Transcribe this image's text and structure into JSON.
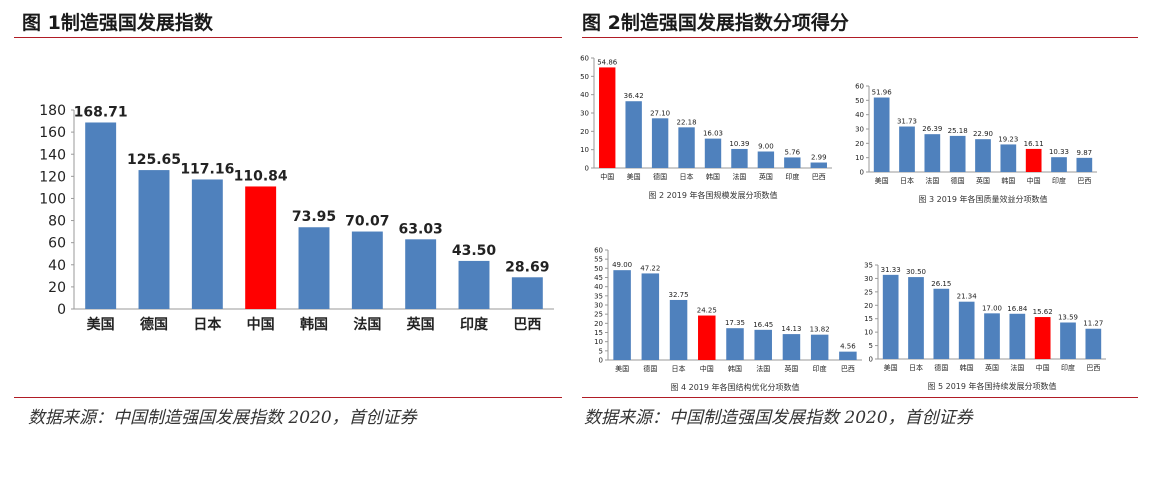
{
  "left": {
    "title": "图 1制造强国发展指数",
    "source": "数据来源：中国制造强国发展指数 2020，首创证券"
  },
  "right": {
    "title": "图 2制造强国发展指数分项得分",
    "source": "数据来源：中国制造强国发展指数 2020，首创证券"
  },
  "colors": {
    "bar": "#4f81bd",
    "highlight": "#ff0000",
    "rule": "#b01c25"
  },
  "chart_data": [
    {
      "type": "bar",
      "title": "",
      "categories": [
        "美国",
        "德国",
        "日本",
        "中国",
        "韩国",
        "法国",
        "英国",
        "印度",
        "巴西"
      ],
      "values": [
        168.71,
        125.65,
        117.16,
        110.84,
        73.95,
        70.07,
        63.03,
        43.5,
        28.69
      ],
      "value_labels": [
        "168.71",
        "125.65",
        "117.16",
        "110.84",
        "73.95",
        "70.07",
        "63.03",
        "43.50",
        "28.69"
      ],
      "highlight": "中国",
      "ylim": [
        0,
        180
      ],
      "yticks": [
        0,
        20,
        40,
        60,
        80,
        100,
        120,
        140,
        160,
        180
      ],
      "grid": false
    },
    {
      "type": "bar",
      "caption": "图 2 2019 年各国规模发展分项数值",
      "categories": [
        "中国",
        "美国",
        "德国",
        "日本",
        "韩国",
        "法国",
        "英国",
        "印度",
        "巴西"
      ],
      "values": [
        54.86,
        36.42,
        27.1,
        22.18,
        16.03,
        10.39,
        9.0,
        5.76,
        2.99
      ],
      "value_labels": [
        "54.86",
        "36.42",
        "27.10",
        "22.18",
        "16.03",
        "10.39",
        "9.00",
        "5.76",
        "2.99"
      ],
      "highlight": "中国",
      "ylim": [
        0,
        60
      ],
      "yticks": [
        0,
        10,
        20,
        30,
        40,
        50,
        60
      ]
    },
    {
      "type": "bar",
      "caption": "图 3 2019 年各国质量效益分项数值",
      "categories": [
        "美国",
        "日本",
        "法国",
        "德国",
        "英国",
        "韩国",
        "中国",
        "印度",
        "巴西"
      ],
      "values": [
        51.96,
        31.73,
        26.39,
        25.18,
        22.9,
        19.23,
        16.11,
        10.33,
        9.87
      ],
      "value_labels": [
        "51.96",
        "31.73",
        "26.39",
        "25.18",
        "22.90",
        "19.23",
        "16.11",
        "10.33",
        "9.87"
      ],
      "highlight": "中国",
      "ylim": [
        0,
        60
      ],
      "yticks": [
        0,
        10,
        20,
        30,
        40,
        50,
        60
      ]
    },
    {
      "type": "bar",
      "caption": "图 4 2019 年各国结构优化分项数值",
      "categories": [
        "美国",
        "德国",
        "日本",
        "中国",
        "韩国",
        "法国",
        "英国",
        "印度",
        "巴西"
      ],
      "values": [
        49.0,
        47.22,
        32.75,
        24.25,
        17.35,
        16.45,
        14.13,
        13.82,
        4.56
      ],
      "value_labels": [
        "49.00",
        "47.22",
        "32.75",
        "24.25",
        "17.35",
        "16.45",
        "14.13",
        "13.82",
        "4.56"
      ],
      "highlight": "中国",
      "ylim": [
        0,
        60
      ],
      "yticks": [
        0,
        5,
        10,
        15,
        20,
        25,
        30,
        35,
        40,
        45,
        50,
        55,
        60
      ]
    },
    {
      "type": "bar",
      "caption": "图 5 2019 年各国持续发展分项数值",
      "categories": [
        "美国",
        "日本",
        "德国",
        "韩国",
        "英国",
        "法国",
        "中国",
        "印度",
        "巴西"
      ],
      "values": [
        31.33,
        30.5,
        26.15,
        21.34,
        17.0,
        16.84,
        15.62,
        13.59,
        11.27
      ],
      "value_labels": [
        "31.33",
        "30.50",
        "26.15",
        "21.34",
        "17.00",
        "16.84",
        "15.62",
        "13.59",
        "11.27"
      ],
      "highlight": "中国",
      "ylim": [
        0,
        35
      ],
      "yticks": [
        0,
        5,
        10,
        15,
        20,
        25,
        30,
        35
      ]
    }
  ]
}
